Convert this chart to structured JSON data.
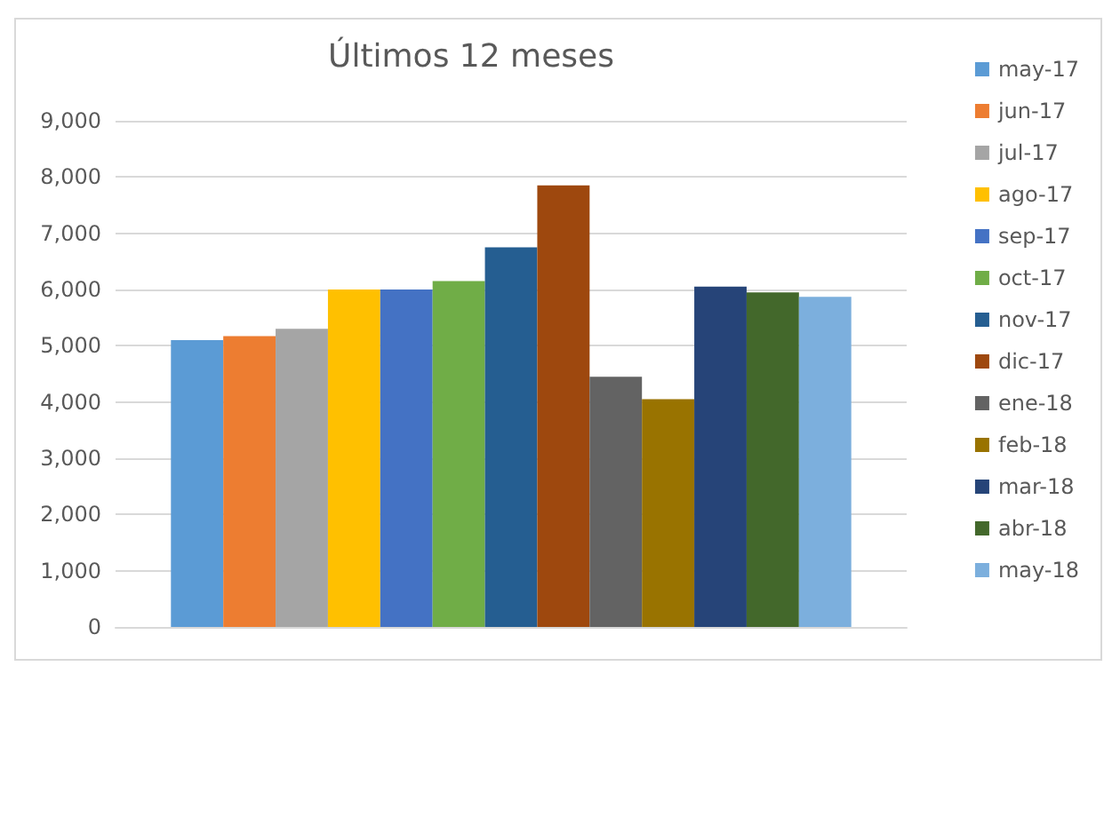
{
  "chart_data": {
    "type": "bar",
    "title": "Últimos 12 meses",
    "categories": [
      null
    ],
    "series": [
      {
        "name": "may-17",
        "color": "#5b9bd5",
        "values": [
          5100
        ]
      },
      {
        "name": "jun-17",
        "color": "#ed7d31",
        "values": [
          5170
        ]
      },
      {
        "name": "jul-17",
        "color": "#a5a5a5",
        "values": [
          5300
        ]
      },
      {
        "name": "ago-17",
        "color": "#ffc000",
        "values": [
          6000
        ]
      },
      {
        "name": "sep-17",
        "color": "#4472c4",
        "values": [
          6000
        ]
      },
      {
        "name": "oct-17",
        "color": "#70ad47",
        "values": [
          6150
        ]
      },
      {
        "name": "nov-17",
        "color": "#255e91",
        "values": [
          6750
        ]
      },
      {
        "name": "dic-17",
        "color": "#9e480e",
        "values": [
          7850
        ]
      },
      {
        "name": "ene-18",
        "color": "#636363",
        "values": [
          4450
        ]
      },
      {
        "name": "feb-18",
        "color": "#997300",
        "values": [
          4050
        ]
      },
      {
        "name": "mar-18",
        "color": "#264478",
        "values": [
          6050
        ]
      },
      {
        "name": "abr-18",
        "color": "#43682b",
        "values": [
          5950
        ]
      },
      {
        "name": "may-18",
        "color": "#7cafdd",
        "values": [
          5870
        ]
      }
    ],
    "ylim": [
      0,
      9000
    ],
    "yticks": [
      0,
      {
        "value": 1000,
        "label": "1,000"
      },
      {
        "value": 2000,
        "label": "2,000"
      },
      {
        "value": 3000,
        "label": "3,000"
      },
      {
        "value": 4000,
        "label": "4,000"
      },
      {
        "value": 5000,
        "label": "5,000"
      },
      {
        "value": 6000,
        "label": "6,000"
      },
      {
        "value": 7000,
        "label": "7,000"
      },
      {
        "value": 8000,
        "label": "8,000"
      },
      {
        "value": 9000,
        "label": "9,000"
      }
    ],
    "grid": "y",
    "legend": "right"
  }
}
